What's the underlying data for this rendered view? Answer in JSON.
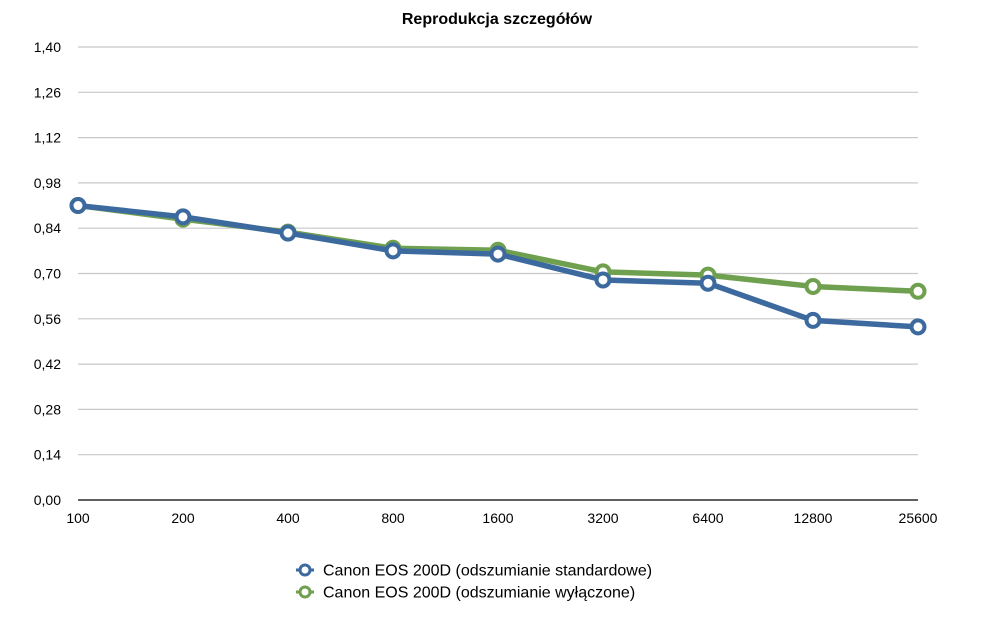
{
  "chart_data": {
    "type": "line",
    "title": "Reprodukcja szczegółów",
    "xlabel": "",
    "ylabel": "",
    "categories": [
      "100",
      "200",
      "400",
      "800",
      "1600",
      "3200",
      "6400",
      "12800",
      "25600"
    ],
    "y_ticks": [
      "0,00",
      "0,14",
      "0,28",
      "0,42",
      "0,56",
      "0,70",
      "0,84",
      "0,98",
      "1,12",
      "1,26",
      "1,40"
    ],
    "ylim": [
      0,
      1.4
    ],
    "grid": true,
    "legend_position": "bottom",
    "series": [
      {
        "name": "Canon EOS 200D (odszumianie standardowe)",
        "color": "#3d6a9e",
        "values": [
          0.91,
          0.875,
          0.825,
          0.77,
          0.76,
          0.68,
          0.67,
          0.555,
          0.535
        ]
      },
      {
        "name": "Canon EOS 200D (odszumianie wyłączone)",
        "color": "#6fa04f",
        "values": [
          0.91,
          0.868,
          0.828,
          0.778,
          0.772,
          0.705,
          0.695,
          0.66,
          0.645
        ]
      }
    ]
  }
}
